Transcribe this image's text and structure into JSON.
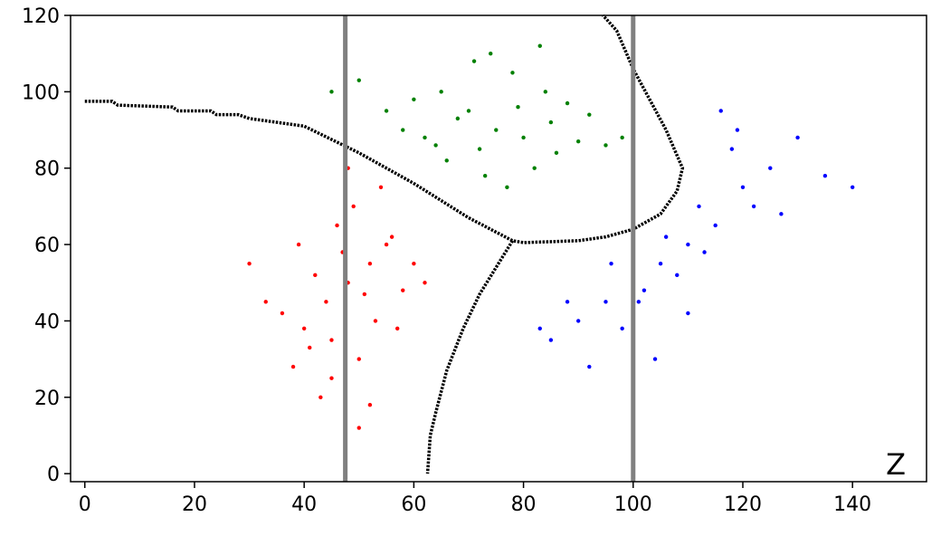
{
  "chart_data": {
    "type": "scatter",
    "annotation": "Z",
    "xlim": [
      -2.6,
      153.5
    ],
    "ylim": [
      -2.1,
      120
    ],
    "xticks": [
      0,
      20,
      40,
      60,
      80,
      100,
      120,
      140
    ],
    "yticks": [
      0,
      20,
      40,
      60,
      80,
      100,
      120
    ],
    "series": [
      {
        "color": "#ff0000",
        "x": [
          48,
          52,
          44,
          40,
          55,
          50,
          46,
          58,
          36,
          42,
          53,
          49,
          45,
          60,
          38,
          51,
          47,
          56,
          43,
          33,
          54,
          41,
          62,
          50,
          45,
          57,
          39,
          48,
          52,
          30
        ],
        "y": [
          50,
          55,
          45,
          38,
          60,
          30,
          65,
          48,
          42,
          52,
          40,
          70,
          35,
          55,
          28,
          47,
          58,
          62,
          20,
          45,
          75,
          33,
          50,
          12,
          25,
          38,
          60,
          80,
          18,
          55
        ]
      },
      {
        "color": "#008000",
        "x": [
          70,
          75,
          80,
          65,
          85,
          72,
          60,
          90,
          78,
          68,
          82,
          55,
          95,
          74,
          88,
          62,
          77,
          84,
          50,
          66,
          92,
          71,
          86,
          58,
          98,
          79,
          45,
          73,
          83,
          64
        ],
        "y": [
          95,
          90,
          88,
          100,
          92,
          85,
          98,
          87,
          105,
          93,
          80,
          95,
          86,
          110,
          97,
          88,
          75,
          100,
          103,
          82,
          94,
          108,
          84,
          90,
          88,
          96,
          100,
          78,
          112,
          86
        ]
      },
      {
        "color": "#0000ff",
        "x": [
          100,
          105,
          110,
          115,
          95,
          120,
          108,
          90,
          125,
          112,
          102,
          118,
          85,
          130,
          98,
          106,
          122,
          88,
          113,
          135,
          104,
          96,
          116,
          127,
          92,
          110,
          140,
          101,
          119,
          83
        ],
        "y": [
          50,
          55,
          60,
          65,
          45,
          75,
          52,
          40,
          80,
          70,
          48,
          85,
          35,
          88,
          38,
          62,
          70,
          45,
          58,
          78,
          30,
          55,
          95,
          68,
          28,
          42,
          75,
          45,
          90,
          38
        ]
      }
    ],
    "boundaries": [
      {
        "color": "#000000",
        "x": [
          0,
          5,
          6,
          16,
          17,
          23,
          24,
          28,
          30,
          40,
          50,
          60,
          70,
          78,
          80,
          90,
          95,
          100,
          105,
          108,
          109,
          106,
          103,
          100,
          97,
          94.5
        ],
        "y": [
          97.5,
          97.5,
          96.5,
          96,
          95,
          95,
          94,
          94,
          93,
          91,
          84,
          76,
          67,
          61,
          60.5,
          61,
          62,
          64,
          68,
          74,
          80,
          90,
          98,
          106,
          116,
          120
        ]
      },
      {
        "color": "#000000",
        "x": [
          78,
          75,
          72,
          69,
          66,
          64,
          63,
          62.5
        ],
        "y": [
          61,
          54,
          47,
          38,
          27,
          16,
          10,
          0
        ]
      }
    ],
    "vlines": {
      "color": "#808080",
      "values": [
        47.5,
        100
      ]
    }
  }
}
